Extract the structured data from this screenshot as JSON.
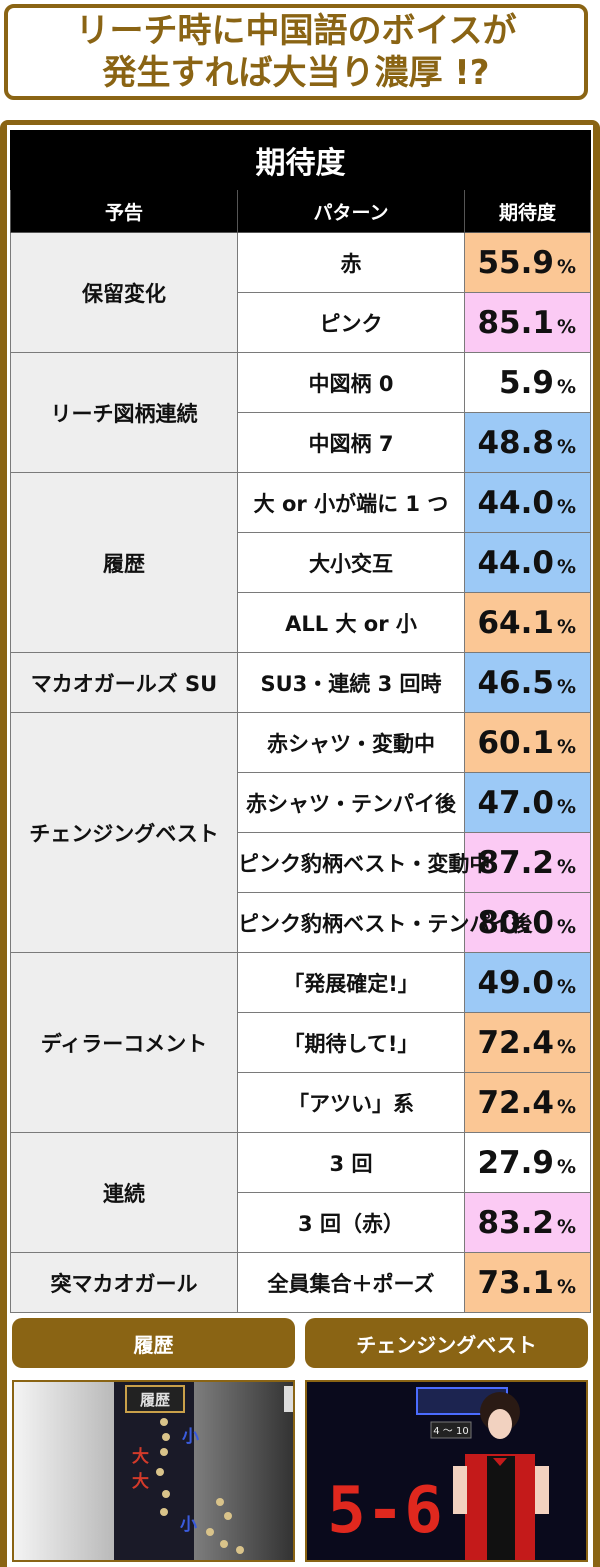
{
  "title": {
    "line1": "リーチ時に中国語のボイスが",
    "line2": "発生すれば大当り濃厚 !?"
  },
  "table": {
    "title": "期待度",
    "headers": [
      "予告",
      "パターン",
      "期待度"
    ],
    "unit": "%",
    "groups": [
      {
        "label": "保留変化",
        "rows": [
          {
            "pattern": "赤",
            "value": "55.9",
            "color": "#fbc795"
          },
          {
            "pattern": "ピンク",
            "value": "85.1",
            "color": "#fbcaf4"
          }
        ]
      },
      {
        "label": "リーチ図柄連続",
        "rows": [
          {
            "pattern": "中図柄 0",
            "value": "5.9",
            "color": "#ffffff"
          },
          {
            "pattern": "中図柄 7",
            "value": "48.8",
            "color": "#9cc9f6"
          }
        ]
      },
      {
        "label": "履歴",
        "rows": [
          {
            "pattern": "大 or 小が端に 1 つ",
            "value": "44.0",
            "color": "#9cc9f6"
          },
          {
            "pattern": "大小交互",
            "value": "44.0",
            "color": "#9cc9f6"
          },
          {
            "pattern": "ALL 大 or 小",
            "value": "64.1",
            "color": "#fbc795"
          }
        ]
      },
      {
        "label": "マカオガールズ SU",
        "rows": [
          {
            "pattern": "SU3・連続 3 回時",
            "value": "46.5",
            "color": "#9cc9f6"
          }
        ]
      },
      {
        "label": "チェンジングベスト",
        "rows": [
          {
            "pattern": "赤シャツ・変動中",
            "value": "60.1",
            "color": "#fbc795"
          },
          {
            "pattern": "赤シャツ・テンパイ後",
            "value": "47.0",
            "color": "#9cc9f6"
          },
          {
            "pattern": "ピンク豹柄ベスト・変動中",
            "value": "87.2",
            "color": "#fbcaf4"
          },
          {
            "pattern": "ピンク豹柄ベスト・テンパイ後",
            "value": "80.0",
            "color": "#fbcaf4"
          }
        ]
      },
      {
        "label": "ディラーコメント",
        "rows": [
          {
            "pattern": "「発展確定!」",
            "value": "49.0",
            "color": "#9cc9f6"
          },
          {
            "pattern": "「期待して!」",
            "value": "72.4",
            "color": "#fbc795"
          },
          {
            "pattern": "「アツい」系",
            "value": "72.4",
            "color": "#fbc795"
          }
        ]
      },
      {
        "label": "連続",
        "rows": [
          {
            "pattern": "3 回",
            "value": "27.9",
            "color": "#ffffff"
          },
          {
            "pattern": "3 回（赤）",
            "value": "83.2",
            "color": "#fbcaf4"
          }
        ]
      },
      {
        "label": "突マカオガール",
        "rows": [
          {
            "pattern": "全員集合＋ポーズ",
            "value": "73.1",
            "color": "#fbc795"
          }
        ]
      }
    ]
  },
  "tabs": {
    "left": "履歴",
    "right": "チェンジングベスト"
  },
  "photos": {
    "left": {
      "panel_label": "履歴",
      "glyphs": [
        "小",
        "大",
        "大",
        "小"
      ]
    },
    "right": {
      "small_label": "4 ～ 10",
      "digits": "5-6"
    }
  },
  "colors": {
    "brand": "#8a6414",
    "orange": "#fbc795",
    "pink": "#fbcaf4",
    "blue": "#9cc9f6"
  }
}
